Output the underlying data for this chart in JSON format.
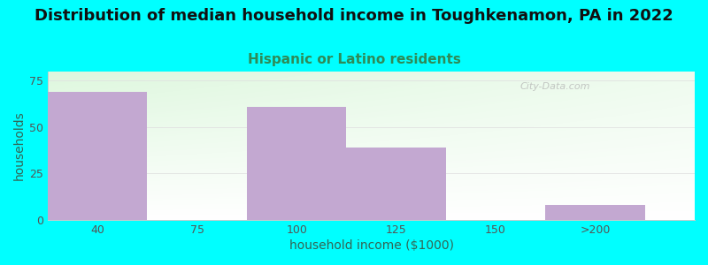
{
  "title": "Distribution of median household income in Toughkenamon, PA in 2022",
  "subtitle": "Hispanic or Latino residents",
  "xlabel": "household income ($1000)",
  "ylabel": "households",
  "background_color": "#00FFFF",
  "plot_bg_color_topleft": "#d8f0d8",
  "plot_bg_color_right": "#f8fff8",
  "plot_bg_color_bottom": "#ffffff",
  "bar_color": "#C3A8D1",
  "categories": [
    "40",
    "75",
    "100",
    "125",
    "150",
    ">200"
  ],
  "bar_lefts": [
    0,
    1,
    2,
    3,
    4,
    5
  ],
  "values": [
    69,
    0,
    61,
    39,
    0,
    8
  ],
  "ylim": [
    0,
    80
  ],
  "yticks": [
    0,
    25,
    50,
    75
  ],
  "xticks": [
    0.5,
    1.5,
    2.5,
    3.5,
    4.5,
    5.5
  ],
  "xlim": [
    0,
    6.5
  ],
  "title_fontsize": 13,
  "subtitle_fontsize": 11,
  "subtitle_color": "#2E8B57",
  "axis_label_color": "#336655",
  "tick_color": "#555555",
  "tick_fontsize": 9,
  "label_fontsize": 10,
  "watermark": "City-Data.com",
  "grid_color": "#e0e0e0"
}
